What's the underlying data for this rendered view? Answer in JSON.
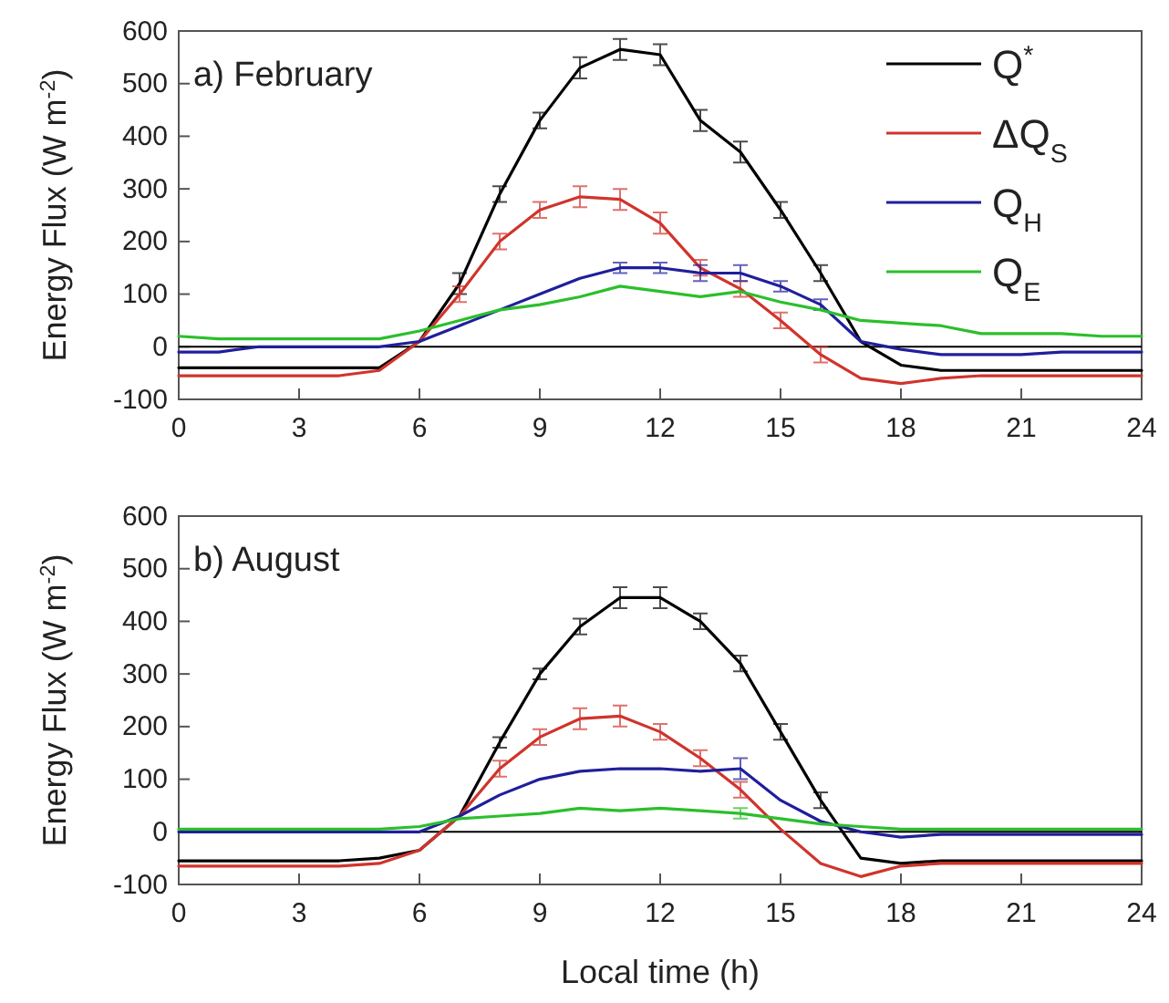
{
  "chart_data": [
    {
      "type": "line",
      "title": "a) February",
      "ylabel": "Energy Flux (W m$^{-2}$)",
      "x": [
        0,
        1,
        2,
        3,
        4,
        5,
        6,
        7,
        8,
        9,
        10,
        11,
        12,
        13,
        14,
        15,
        16,
        17,
        18,
        19,
        20,
        21,
        22,
        23,
        24
      ],
      "xlim": [
        0,
        24
      ],
      "xticks": [
        0,
        3,
        6,
        9,
        12,
        15,
        18,
        21,
        24
      ],
      "ylim": [
        -100,
        600
      ],
      "yticks": [
        -100,
        0,
        100,
        200,
        300,
        400,
        500,
        600
      ],
      "grid": false,
      "legend": "top right",
      "marker": "none",
      "ref_lines": [
        {
          "axis": "y",
          "value": 0,
          "color": "#000000"
        }
      ],
      "series": [
        {
          "name": "Q$^{*}$",
          "color": "#000000",
          "values": [
            -40,
            -40,
            -40,
            -40,
            -40,
            -40,
            10,
            120,
            290,
            430,
            530,
            565,
            555,
            430,
            370,
            260,
            140,
            10,
            -35,
            -45,
            -45,
            -45,
            -45,
            -45,
            -45
          ],
          "errors": [
            null,
            null,
            null,
            null,
            null,
            null,
            null,
            20,
            15,
            15,
            20,
            20,
            20,
            20,
            20,
            15,
            15,
            null,
            null,
            null,
            null,
            null,
            null,
            null,
            null
          ]
        },
        {
          "name": "ΔQ$_{S}$",
          "color": "#d0342c",
          "values": [
            -55,
            -55,
            -55,
            -55,
            -55,
            -45,
            10,
            100,
            200,
            260,
            285,
            280,
            235,
            150,
            110,
            50,
            -15,
            -60,
            -70,
            -60,
            -55,
            -55,
            -55,
            -55,
            -55
          ],
          "errors": [
            null,
            null,
            null,
            null,
            null,
            null,
            null,
            15,
            15,
            15,
            20,
            20,
            20,
            15,
            15,
            15,
            15,
            null,
            null,
            null,
            null,
            null,
            null,
            null,
            null
          ]
        },
        {
          "name": "Q$_{H}$",
          "color": "#1f1f9c",
          "values": [
            -10,
            -10,
            0,
            0,
            0,
            0,
            10,
            40,
            70,
            100,
            130,
            150,
            150,
            140,
            140,
            115,
            80,
            10,
            -5,
            -15,
            -15,
            -15,
            -10,
            -10,
            -10
          ],
          "errors": [
            null,
            null,
            null,
            null,
            null,
            null,
            null,
            null,
            null,
            null,
            null,
            10,
            10,
            15,
            15,
            10,
            10,
            null,
            null,
            null,
            null,
            null,
            null,
            null,
            null
          ]
        },
        {
          "name": "Q$_{E}$",
          "color": "#2bbf2b",
          "values": [
            20,
            15,
            15,
            15,
            15,
            15,
            30,
            50,
            70,
            80,
            95,
            115,
            105,
            95,
            105,
            85,
            70,
            50,
            45,
            40,
            25,
            25,
            25,
            20,
            20
          ]
        }
      ]
    },
    {
      "type": "line",
      "title": "b) August",
      "xlabel": "Local time (h)",
      "ylabel": "Energy Flux (W m$^{-2}$)",
      "x": [
        0,
        1,
        2,
        3,
        4,
        5,
        6,
        7,
        8,
        9,
        10,
        11,
        12,
        13,
        14,
        15,
        16,
        17,
        18,
        19,
        20,
        21,
        22,
        23,
        24
      ],
      "xlim": [
        0,
        24
      ],
      "xticks": [
        0,
        3,
        6,
        9,
        12,
        15,
        18,
        21,
        24
      ],
      "ylim": [
        -100,
        600
      ],
      "yticks": [
        -100,
        0,
        100,
        200,
        300,
        400,
        500,
        600
      ],
      "grid": false,
      "marker": "none",
      "ref_lines": [
        {
          "axis": "y",
          "value": 0,
          "color": "#000000"
        }
      ],
      "series": [
        {
          "color": "#000000",
          "values": [
            -55,
            -55,
            -55,
            -55,
            -55,
            -50,
            -35,
            30,
            170,
            300,
            390,
            445,
            445,
            400,
            320,
            190,
            60,
            -50,
            -60,
            -55,
            -55,
            -55,
            -55,
            -55,
            -55
          ],
          "errors": [
            null,
            null,
            null,
            null,
            null,
            null,
            null,
            null,
            10,
            10,
            15,
            20,
            20,
            15,
            15,
            15,
            15,
            null,
            null,
            null,
            null,
            null,
            null,
            null,
            null
          ]
        },
        {
          "color": "#d0342c",
          "values": [
            -65,
            -65,
            -65,
            -65,
            -65,
            -60,
            -35,
            30,
            120,
            180,
            215,
            220,
            190,
            140,
            80,
            5,
            -60,
            -85,
            -65,
            -60,
            -60,
            -60,
            -60,
            -60,
            -60
          ],
          "errors": [
            null,
            null,
            null,
            null,
            null,
            null,
            null,
            null,
            15,
            15,
            20,
            20,
            15,
            15,
            15,
            null,
            null,
            null,
            null,
            null,
            null,
            null,
            null,
            null,
            null
          ]
        },
        {
          "color": "#1f1f9c",
          "values": [
            0,
            0,
            0,
            0,
            0,
            0,
            0,
            30,
            70,
            100,
            115,
            120,
            120,
            115,
            120,
            60,
            20,
            0,
            -10,
            -5,
            -5,
            -5,
            -5,
            -5,
            -5
          ],
          "errors": [
            null,
            null,
            null,
            null,
            null,
            null,
            null,
            null,
            null,
            null,
            null,
            null,
            null,
            null,
            20,
            null,
            null,
            null,
            null,
            null,
            null,
            null,
            null,
            null,
            null
          ]
        },
        {
          "color": "#2bbf2b",
          "values": [
            5,
            5,
            5,
            5,
            5,
            5,
            10,
            25,
            30,
            35,
            45,
            40,
            45,
            40,
            35,
            25,
            15,
            10,
            5,
            5,
            5,
            5,
            5,
            5,
            5
          ],
          "errors": [
            null,
            null,
            null,
            null,
            null,
            null,
            null,
            null,
            null,
            null,
            null,
            null,
            null,
            null,
            10,
            null,
            null,
            null,
            null,
            null,
            null,
            null,
            null,
            null,
            null
          ]
        }
      ]
    }
  ]
}
